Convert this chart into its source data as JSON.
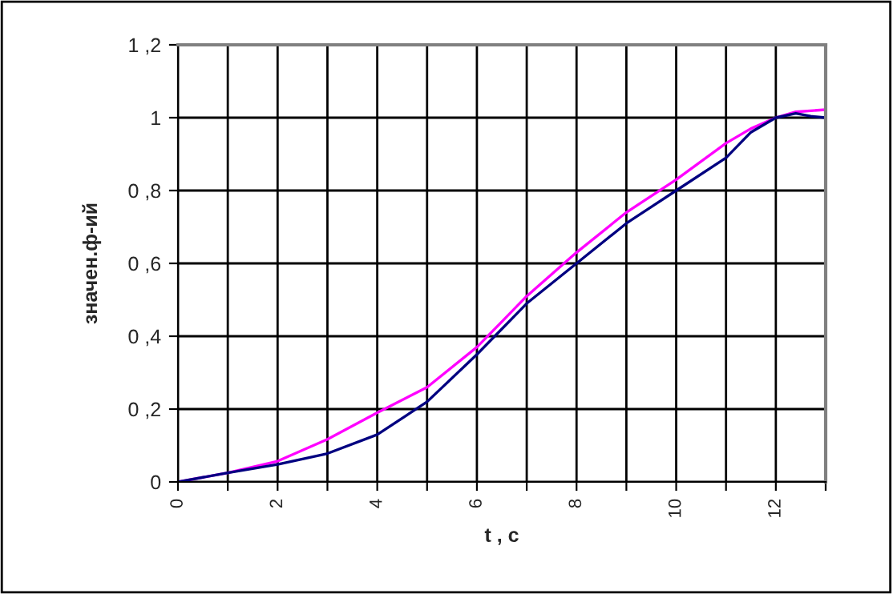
{
  "chart_data": {
    "type": "line",
    "xlabel": "t , c",
    "ylabel": "значен.ф-ий",
    "xlim": [
      0,
      13
    ],
    "ylim": [
      0,
      1.2
    ],
    "xticks": [
      0,
      {
        "value": 1,
        "label": null
      },
      2,
      {
        "value": 3,
        "label": null
      },
      4,
      {
        "value": 5,
        "label": null
      },
      6,
      {
        "value": 7,
        "label": null
      },
      8,
      {
        "value": 9,
        "label": null
      },
      10,
      {
        "value": 11,
        "label": null
      },
      12,
      {
        "value": 13,
        "label": null
      }
    ],
    "yticks": [
      0,
      {
        "value": 0.2,
        "label": "0 ,2"
      },
      {
        "value": 0.4,
        "label": "0 ,4"
      },
      {
        "value": 0.6,
        "label": "0 ,6"
      },
      {
        "value": 0.8,
        "label": "0 ,8"
      },
      1,
      {
        "value": 1.2,
        "label": "1 ,2"
      }
    ],
    "grid": true,
    "legend": false,
    "marker": "none",
    "line_style": "solid",
    "series": [
      {
        "color": "#ff00ff",
        "x": [
          0,
          1,
          2,
          3,
          4,
          5,
          6,
          6.5,
          7,
          8,
          9,
          10,
          11,
          11.5,
          12,
          12.4,
          13
        ],
        "values": [
          0,
          0.025,
          0.057,
          0.117,
          0.19,
          0.26,
          0.37,
          0.44,
          0.51,
          0.63,
          0.74,
          0.83,
          0.93,
          0.97,
          1.0,
          1.016,
          1.022
        ]
      },
      {
        "color": "#000080",
        "x": [
          0,
          1,
          2,
          3,
          4,
          5,
          6,
          7,
          8,
          9,
          10,
          11,
          11.5,
          12,
          12.4,
          12.7,
          13
        ],
        "values": [
          0,
          0.025,
          0.048,
          0.078,
          0.13,
          0.22,
          0.35,
          0.49,
          0.6,
          0.71,
          0.8,
          0.89,
          0.96,
          1.0,
          1.012,
          1.004,
          1.0
        ]
      }
    ]
  }
}
